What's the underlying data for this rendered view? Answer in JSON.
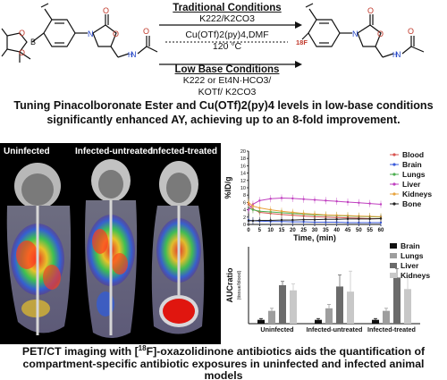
{
  "scheme": {
    "traditional": {
      "title": "Traditional Conditions",
      "reagents": "K222/K2CO3"
    },
    "copper": {
      "line1": "Cu(OTf)2(py)4,DMF",
      "line2": "120 °C"
    },
    "low_base": {
      "title": "Low Base Conditions",
      "line1": "K222 or Et4N·HCO3/",
      "line2": "KOTf/ K2CO3"
    },
    "isotope_label": "18F"
  },
  "headline": "Tuning Pinacolboronate Ester and Cu(OTf)2(py)4 levels in low-base conditions significantly enhanced AY, achieving up to an 8-fold improvement.",
  "imaging": {
    "labels": [
      "Uninfected",
      "Infected-untreated",
      "Infected-treated"
    ]
  },
  "caption": {
    "part1": "PET/CT imaging with [",
    "sup": "18",
    "part2": "F]-oxazolidinone antibiotics aids the quantification of compartment-specific antibiotic exposures in uninfected and infected animal models"
  },
  "colors": {
    "blood": "#d9534f",
    "brain": "#3b5bdb",
    "lungs": "#4caf50",
    "liver": "#c03fc0",
    "kidneys": "#e8a33d",
    "bone": "#222222",
    "bar_brain": "#111111",
    "bar_lungs": "#9e9e9e",
    "bar_liver": "#6b6b6b",
    "bar_kidneys": "#c8c8c8"
  },
  "chart_data": [
    {
      "type": "line",
      "xlabel": "Time, (min)",
      "ylabel": "%ID/g",
      "x": [
        0,
        2,
        5,
        10,
        15,
        20,
        25,
        30,
        35,
        40,
        45,
        50,
        55,
        60
      ],
      "xticks": [
        0,
        5,
        10,
        15,
        20,
        25,
        30,
        35,
        40,
        45,
        50,
        55,
        60
      ],
      "yticks": [
        0,
        2,
        4,
        6,
        8,
        10,
        12,
        14,
        16,
        18,
        20
      ],
      "xlim": [
        0,
        60
      ],
      "ylim": [
        0,
        20
      ],
      "legend_position": "right",
      "series": [
        {
          "name": "Blood",
          "values": [
            5.5,
            4.2,
            3.3,
            3.0,
            2.7,
            2.5,
            2.3,
            2.1,
            2.0,
            1.9,
            1.8,
            1.7,
            1.6,
            1.6
          ]
        },
        {
          "name": "Brain",
          "values": [
            1.2,
            1.0,
            0.9,
            0.8,
            0.8,
            0.7,
            0.7,
            0.6,
            0.6,
            0.6,
            0.5,
            0.5,
            0.5,
            0.5
          ]
        },
        {
          "name": "Lungs",
          "values": [
            4.5,
            4.0,
            3.6,
            3.4,
            3.2,
            3.0,
            2.8,
            2.6,
            2.5,
            2.4,
            2.3,
            2.2,
            2.1,
            2.0
          ]
        },
        {
          "name": "Liver",
          "values": [
            4.0,
            5.5,
            6.5,
            7.0,
            7.2,
            7.1,
            6.9,
            6.7,
            6.5,
            6.3,
            6.1,
            5.9,
            5.7,
            5.5
          ]
        },
        {
          "name": "Kidneys",
          "values": [
            6.0,
            5.0,
            4.5,
            4.0,
            3.6,
            3.3,
            3.0,
            2.8,
            2.6,
            2.5,
            2.4,
            2.3,
            2.2,
            2.1
          ]
        },
        {
          "name": "Bone",
          "values": [
            1.0,
            1.0,
            1.1,
            1.1,
            1.2,
            1.2,
            1.3,
            1.3,
            1.4,
            1.4,
            1.5,
            1.5,
            1.5,
            1.6
          ]
        }
      ]
    },
    {
      "type": "bar",
      "ylabel": "AUCratio",
      "ylabel_sub": "(tissue/blood)",
      "categories": [
        "Uninfected",
        "Infected-untreated",
        "Infected-treated"
      ],
      "ylim": [
        0,
        6
      ],
      "legend_position": "top-right",
      "series": [
        {
          "name": "Brain",
          "values": [
            0.3,
            0.3,
            0.3
          ],
          "errors": [
            0.1,
            0.1,
            0.1
          ]
        },
        {
          "name": "Lungs",
          "values": [
            1.0,
            1.2,
            1.0
          ],
          "errors": [
            0.2,
            0.3,
            0.2
          ]
        },
        {
          "name": "Liver",
          "values": [
            3.0,
            2.9,
            3.6
          ],
          "errors": [
            0.3,
            0.9,
            0.7
          ]
        },
        {
          "name": "Kidneys",
          "values": [
            2.6,
            2.5,
            2.7
          ],
          "errors": [
            0.5,
            1.6,
            0.9
          ]
        }
      ]
    }
  ]
}
